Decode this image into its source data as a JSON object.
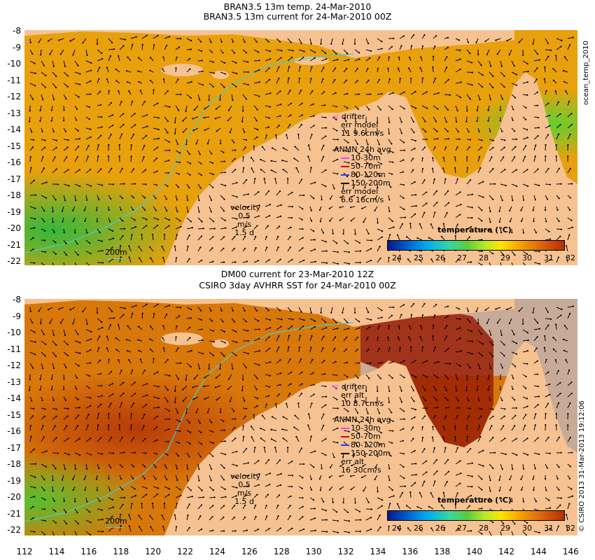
{
  "top": {
    "title1": "BRAN3.5 13m temp. 24-Mar-2010",
    "title2": "BRAN3.5 13m current for 24-Mar-2010 00Z",
    "drifter": "drifter",
    "err_line": "err model",
    "err_value": "11 9.6cm/s",
    "anmn_title": "ANMN 24h avg",
    "depths": [
      "10-30m",
      "50-70m",
      "80-120m",
      "150-200m"
    ],
    "err2_line": "err model",
    "err2_value": "6.6 16cm/s",
    "velocity": "velocity",
    "velocity_scale": "0.5 m/s",
    "velocity_time": "1.5 d",
    "isobath": "200m",
    "side_label": "ocean_temp_2010"
  },
  "bottom": {
    "title1": "DM00 current for 23-Mar-2010 12Z",
    "title2": "CSIRO 3day AVHRR SST for 24-Mar-2010 00Z",
    "drifter": "drifter",
    "err_line": "err alt",
    "err_value": "10 8.7cm/s",
    "anmn_title": "ANMN 24h avg",
    "depths": [
      "10-30m",
      "50-70m",
      "80-120m",
      "150-200m"
    ],
    "err2_line": "err alt",
    "err2_value": "16 30cm/s",
    "velocity": "velocity",
    "velocity_scale": "0.5 m/s",
    "velocity_time": "1.5 d",
    "isobath": "200m",
    "side_label": "© CSIRO 2013  31-Mar-2013 19:12:06"
  },
  "colorbar": {
    "title": "temperature (°C)",
    "ticks": [
      "24",
      "25",
      "26",
      "27",
      "28",
      "29",
      "30",
      "31",
      "32"
    ]
  },
  "axes": {
    "lat_ticks": [
      "-8",
      "-9",
      "-10",
      "-11",
      "-12",
      "-13",
      "-14",
      "-15",
      "-16",
      "-17",
      "-18",
      "-19",
      "-20",
      "-21",
      "-22"
    ],
    "lon_ticks": [
      "112",
      "114",
      "116",
      "118",
      "120",
      "122",
      "124",
      "126",
      "128",
      "130",
      "132",
      "134",
      "136",
      "138",
      "140",
      "142",
      "144",
      "146"
    ]
  },
  "colors": {
    "land": "#f6c292",
    "ocean_warm": "#e8900a",
    "ocean_hot": "#b83a08",
    "ocean_cool": "#3cc040",
    "isobath": "#40d0d0",
    "no_data": "#c8aa98",
    "depth_colors": [
      "#ff3cff",
      "#e00000",
      "#2040ff",
      "#000000"
    ]
  }
}
